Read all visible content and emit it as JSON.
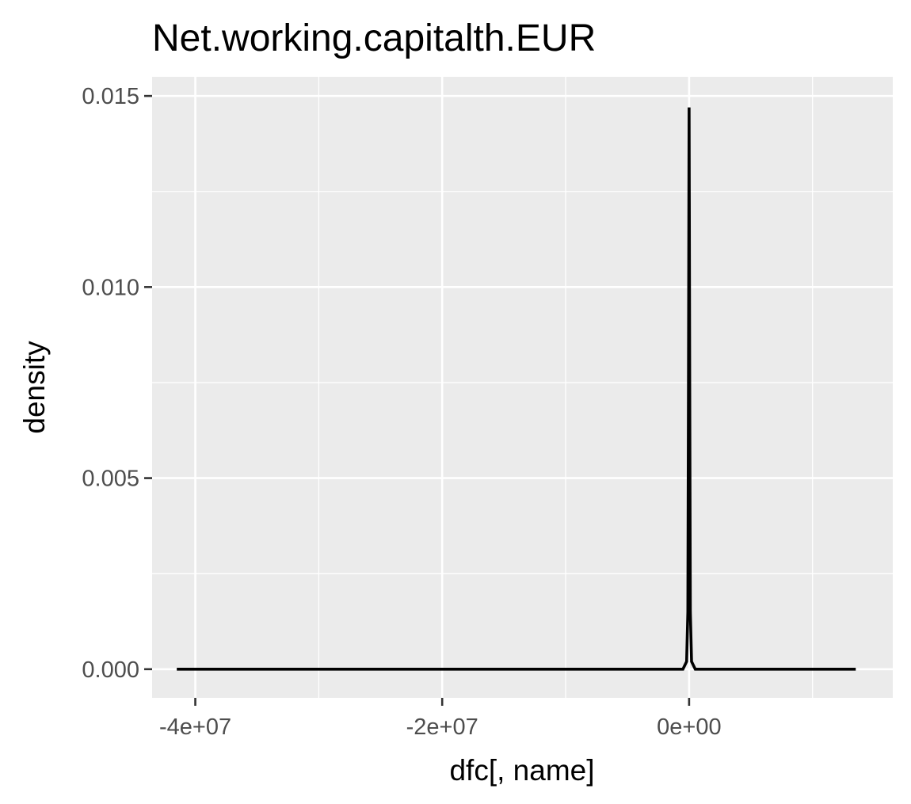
{
  "chart_data": {
    "type": "area",
    "title": "Net.working.capitalth.EUR",
    "xlabel": "dfc[, name]",
    "ylabel": "density",
    "xlim": [
      -43500000,
      16500000
    ],
    "ylim": [
      -0.00075,
      0.0155
    ],
    "x_ticks": [
      {
        "value": -40000000,
        "label": "-4e+07"
      },
      {
        "value": -20000000,
        "label": "-2e+07"
      },
      {
        "value": 0,
        "label": "0e+00"
      }
    ],
    "x_minor_ticks": [
      -30000000,
      -10000000,
      10000000
    ],
    "y_ticks": [
      {
        "value": 0.0,
        "label": "0.000"
      },
      {
        "value": 0.005,
        "label": "0.005"
      },
      {
        "value": 0.01,
        "label": "0.010"
      },
      {
        "value": 0.015,
        "label": "0.015"
      }
    ],
    "y_minor_ticks": [
      0.0025,
      0.0075,
      0.0125
    ],
    "grid": true,
    "colors": {
      "panel_background": "#ebebeb",
      "grid_major": "#ffffff",
      "grid_minor": "#ffffff",
      "line": "#000000",
      "tick_label": "#4d4d4d"
    },
    "series": [
      {
        "x": [
          -41500000,
          -2000000,
          -500000,
          -200000,
          -100000,
          -50000,
          0,
          50000,
          100000,
          200000,
          500000,
          2000000,
          13500000
        ],
        "y": [
          0.0,
          0.0,
          0.0,
          0.0002,
          0.0015,
          0.0075,
          0.0147,
          0.0075,
          0.0015,
          0.0002,
          0.0,
          0.0,
          0.0
        ]
      }
    ]
  }
}
